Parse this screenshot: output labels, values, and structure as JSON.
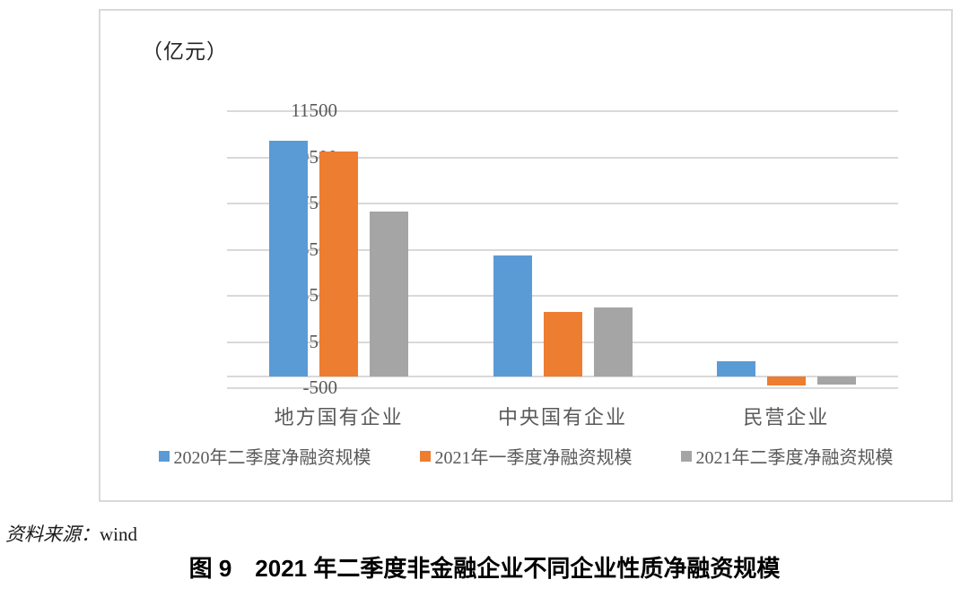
{
  "page": {
    "source_note_label": "资料来源：",
    "source_note_value": "wind",
    "caption_prefix": "图 9",
    "caption_text": "2021 年二季度非金融企业不同企业性质净融资规模"
  },
  "chart_data": {
    "type": "bar",
    "unit_label": "（亿元）",
    "categories": [
      "地方国有企业",
      "中央国有企业",
      "民营企业"
    ],
    "series": [
      {
        "name": "2020年二季度净融资规模",
        "color": "#5B9BD5",
        "values": [
          10200,
          5250,
          680
        ]
      },
      {
        "name": "2021年一季度净融资规模",
        "color": "#ED7D31",
        "values": [
          9750,
          2800,
          -400
        ]
      },
      {
        "name": "2021年二季度净融资规模",
        "color": "#A5A5A5",
        "values": [
          7150,
          3000,
          -330
        ]
      }
    ],
    "y_axis": {
      "min": -500,
      "max": 11500,
      "step": 2000,
      "ticks": [
        11500,
        9500,
        7500,
        5500,
        3500,
        1500,
        -500
      ]
    },
    "grid": true,
    "gridline_color": "#D9D9D9",
    "baseline_value": 0,
    "legend_position": "bottom",
    "text_color": "#595959"
  }
}
